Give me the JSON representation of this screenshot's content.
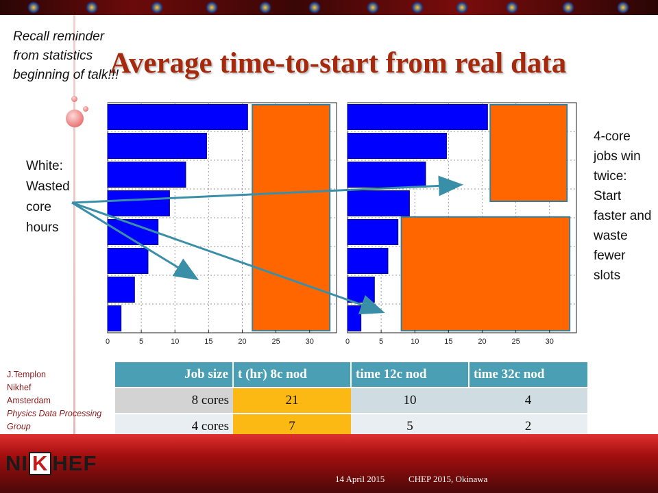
{
  "slide": {
    "title": "Average time-to-start from real data",
    "recall_note": "Recall reminder from statistics beginning of talk!!!",
    "white_note": "White: Wasted core hours",
    "core_note": "4-core jobs win twice: Start faster and waste fewer slots"
  },
  "author": {
    "name": "J.Templon",
    "org": "Nikhef",
    "city": "Amsterdam",
    "group": "Physics Data Processing Group"
  },
  "logo": {
    "text_left": "NI",
    "text_box": "K",
    "text_right": "HEF"
  },
  "footer": {
    "date": "14 April 2015",
    "event": "CHEP 2015, Okinawa"
  },
  "chart_data": [
    {
      "type": "bar",
      "orientation": "horizontal",
      "values": [
        2,
        4,
        6,
        7.5,
        9.2,
        11.6,
        14.7,
        20.8
      ],
      "xlim": [
        0,
        34
      ],
      "xticks": [
        "0",
        "5",
        "10",
        "15",
        "20",
        "25",
        "30"
      ],
      "grid": true,
      "overlay_boxes": [
        {
          "color": "#ff6600",
          "x_range": [
            21.5,
            33
          ],
          "y_slots": [
            0,
            8
          ]
        }
      ]
    },
    {
      "type": "bar",
      "orientation": "horizontal",
      "values": [
        2,
        4,
        6,
        7.5,
        9.2,
        11.6,
        14.7,
        20.8
      ],
      "xlim": [
        0,
        34
      ],
      "xticks": [
        "0",
        "5",
        "10",
        "15",
        "20",
        "25",
        "30"
      ],
      "grid": true,
      "overlay_boxes": [
        {
          "color": "#ff6600",
          "x_range": [
            21.2,
            32.6
          ],
          "y_slots": [
            4.5,
            8
          ]
        },
        {
          "color": "#ff6600",
          "x_range": [
            8,
            33
          ],
          "y_slots": [
            0,
            4.1
          ]
        }
      ]
    }
  ],
  "table": {
    "headers": [
      "Job size",
      "t (hr) 8c nod",
      "time 12c nod",
      "time 32c nod"
    ],
    "rows": [
      [
        "8 cores",
        "21",
        "10",
        "4"
      ],
      [
        "4 cores",
        "7",
        "5",
        "2"
      ]
    ]
  }
}
